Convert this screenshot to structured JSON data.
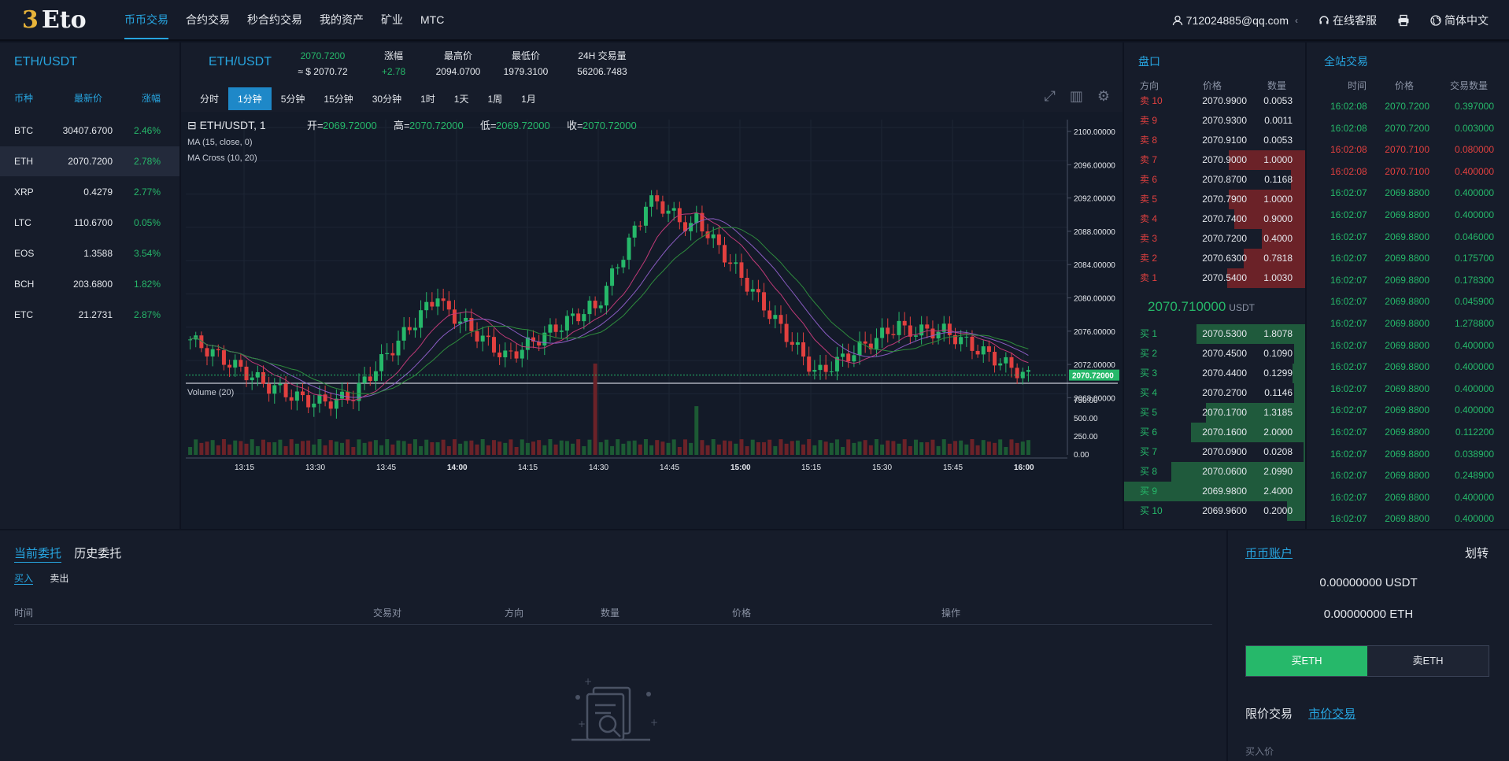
{
  "header": {
    "logo_mark": "3",
    "logo_text": "Eto",
    "nav": [
      "币币交易",
      "合约交易",
      "秒合约交易",
      "我的资产",
      "矿业",
      "MTC"
    ],
    "user": "712024885@qq.com",
    "user_chevron": "‹",
    "support": "在线客服",
    "language": "简体中文"
  },
  "market": {
    "pair": "ETH/USDT",
    "headers": [
      "币种",
      "最新价",
      "涨幅"
    ],
    "rows": [
      {
        "coin": "BTC",
        "price": "30407.6700",
        "change": "2.46%"
      },
      {
        "coin": "ETH",
        "price": "2070.7200",
        "change": "2.78%"
      },
      {
        "coin": "XRP",
        "price": "0.4279",
        "change": "2.77%"
      },
      {
        "coin": "LTC",
        "price": "110.6700",
        "change": "0.05%"
      },
      {
        "coin": "EOS",
        "price": "1.3588",
        "change": "3.54%"
      },
      {
        "coin": "BCH",
        "price": "203.6800",
        "change": "1.82%"
      },
      {
        "coin": "ETC",
        "price": "21.2731",
        "change": "2.87%"
      }
    ]
  },
  "ticker": {
    "pair": "ETH/USDT",
    "last": "2070.7200",
    "last_usd": "≈ $ 2070.72",
    "change_label": "涨幅",
    "change": "+2.78",
    "high_label": "最高价",
    "high": "2094.0700",
    "low_label": "最低价",
    "low": "1979.3100",
    "vol_label": "24H 交易量",
    "vol": "56206.7483"
  },
  "intervals": [
    "分时",
    "1分钟",
    "5分钟",
    "15分钟",
    "30分钟",
    "1时",
    "1天",
    "1周",
    "1月"
  ],
  "chart": {
    "legend_symbol": "ETH/USDT, 1",
    "o_label": "开=",
    "o": "2069.72000",
    "h_label": "高=",
    "h": "2070.72000",
    "l_label": "低=",
    "l": "2069.72000",
    "c_label": "收=",
    "c": "2070.72000",
    "ma": "MA (15, close, 0)",
    "macross": "MA Cross (10, 20)",
    "volume": "Volume (20)",
    "y_ticks": [
      "2100.00000",
      "2096.00000",
      "2092.00000",
      "2088.00000",
      "2084.00000",
      "2080.00000",
      "2076.00000",
      "2072.00000",
      "2068.00000"
    ],
    "last_tag": "2070.72000",
    "vol_ticks": [
      "750.00",
      "500.00",
      "250.00",
      "0.00"
    ],
    "x_ticks": [
      "13:15",
      "13:30",
      "13:45",
      "14:00",
      "14:15",
      "14:30",
      "14:45",
      "15:00",
      "15:15",
      "15:30",
      "15:45",
      "16:00"
    ],
    "colors": {
      "up": "#26b86a",
      "down": "#e2403f",
      "ma1": "#c03a78",
      "ma2": "#2e8b3d",
      "ma3": "#8a5cc2"
    }
  },
  "orderbook": {
    "title": "盘口",
    "headers": [
      "方向",
      "价格",
      "数量"
    ],
    "asks": [
      {
        "side": "卖 10",
        "price": "2070.9900",
        "qty": "0.0053",
        "depth": 0
      },
      {
        "side": "卖 9",
        "price": "2070.9300",
        "qty": "0.0011",
        "depth": 0
      },
      {
        "side": "卖 8",
        "price": "2070.9100",
        "qty": "0.0053",
        "depth": 0
      },
      {
        "side": "卖 7",
        "price": "2070.9000",
        "qty": "1.0000",
        "depth": 0.42
      },
      {
        "side": "卖 6",
        "price": "2070.8700",
        "qty": "0.1168",
        "depth": 0.08
      },
      {
        "side": "卖 5",
        "price": "2070.7900",
        "qty": "1.0000",
        "depth": 0.42
      },
      {
        "side": "卖 4",
        "price": "2070.7400",
        "qty": "0.9000",
        "depth": 0.39
      },
      {
        "side": "卖 3",
        "price": "2070.7200",
        "qty": "0.4000",
        "depth": 0.24
      },
      {
        "side": "卖 2",
        "price": "2070.6300",
        "qty": "0.7818",
        "depth": 0.34
      },
      {
        "side": "卖 1",
        "price": "2070.5400",
        "qty": "1.0030",
        "depth": 0.43
      }
    ],
    "mid": "2070.710000",
    "mid_unit": "USDT",
    "bids": [
      {
        "side": "买 1",
        "price": "2070.5300",
        "qty": "1.8078",
        "depth": 0.6
      },
      {
        "side": "买 2",
        "price": "2070.4500",
        "qty": "0.1090",
        "depth": 0.06
      },
      {
        "side": "买 3",
        "price": "2070.4400",
        "qty": "0.1299",
        "depth": 0.07
      },
      {
        "side": "买 4",
        "price": "2070.2700",
        "qty": "0.1146",
        "depth": 0.06
      },
      {
        "side": "买 5",
        "price": "2070.1700",
        "qty": "1.3185",
        "depth": 0.55
      },
      {
        "side": "买 6",
        "price": "2070.1600",
        "qty": "2.0000",
        "depth": 0.63
      },
      {
        "side": "买 7",
        "price": "2070.0900",
        "qty": "0.0208",
        "depth": 0.01
      },
      {
        "side": "买 8",
        "price": "2070.0600",
        "qty": "2.0990",
        "depth": 0.74
      },
      {
        "side": "买 9",
        "price": "2069.9800",
        "qty": "2.4000",
        "depth": 1.0
      },
      {
        "side": "买 10",
        "price": "2069.9600",
        "qty": "0.2000",
        "depth": 0.1
      }
    ]
  },
  "trades": {
    "title": "全站交易",
    "headers": [
      "时间",
      "价格",
      "交易数量"
    ],
    "rows": [
      {
        "time": "16:02:08",
        "price": "2070.7200",
        "qty": "0.397000",
        "side": "buy"
      },
      {
        "time": "16:02:08",
        "price": "2070.7200",
        "qty": "0.003000",
        "side": "buy"
      },
      {
        "time": "16:02:08",
        "price": "2070.7100",
        "qty": "0.080000",
        "side": "sell"
      },
      {
        "time": "16:02:08",
        "price": "2070.7100",
        "qty": "0.400000",
        "side": "sell"
      },
      {
        "time": "16:02:07",
        "price": "2069.8800",
        "qty": "0.400000",
        "side": "buy"
      },
      {
        "time": "16:02:07",
        "price": "2069.8800",
        "qty": "0.400000",
        "side": "buy"
      },
      {
        "time": "16:02:07",
        "price": "2069.8800",
        "qty": "0.046000",
        "side": "buy"
      },
      {
        "time": "16:02:07",
        "price": "2069.8800",
        "qty": "0.175700",
        "side": "buy"
      },
      {
        "time": "16:02:07",
        "price": "2069.8800",
        "qty": "0.178300",
        "side": "buy"
      },
      {
        "time": "16:02:07",
        "price": "2069.8800",
        "qty": "0.045900",
        "side": "buy"
      },
      {
        "time": "16:02:07",
        "price": "2069.8800",
        "qty": "1.278800",
        "side": "buy"
      },
      {
        "time": "16:02:07",
        "price": "2069.8800",
        "qty": "0.400000",
        "side": "buy"
      },
      {
        "time": "16:02:07",
        "price": "2069.8800",
        "qty": "0.400000",
        "side": "buy"
      },
      {
        "time": "16:02:07",
        "price": "2069.8800",
        "qty": "0.400000",
        "side": "buy"
      },
      {
        "time": "16:02:07",
        "price": "2069.8800",
        "qty": "0.400000",
        "side": "buy"
      },
      {
        "time": "16:02:07",
        "price": "2069.8800",
        "qty": "0.112200",
        "side": "buy"
      },
      {
        "time": "16:02:07",
        "price": "2069.8800",
        "qty": "0.038900",
        "side": "buy"
      },
      {
        "time": "16:02:07",
        "price": "2069.8800",
        "qty": "0.248900",
        "side": "buy"
      },
      {
        "time": "16:02:07",
        "price": "2069.8800",
        "qty": "0.400000",
        "side": "buy"
      },
      {
        "time": "16:02:07",
        "price": "2069.8800",
        "qty": "0.400000",
        "side": "buy"
      }
    ]
  },
  "orders": {
    "tabs": [
      "当前委托",
      "历史委托"
    ],
    "subtabs": [
      "买入",
      "卖出"
    ],
    "headers": [
      "时间",
      "交易对",
      "方向",
      "数量",
      "价格",
      "操作"
    ]
  },
  "account": {
    "title": "币币账户",
    "transfer": "划转",
    "usdt": "0.00000000 USDT",
    "eth": "0.00000000 ETH",
    "buy": "买ETH",
    "sell": "卖ETH",
    "trade_types": [
      "限价交易",
      "市价交易"
    ],
    "buy_price_label": "买入价"
  }
}
